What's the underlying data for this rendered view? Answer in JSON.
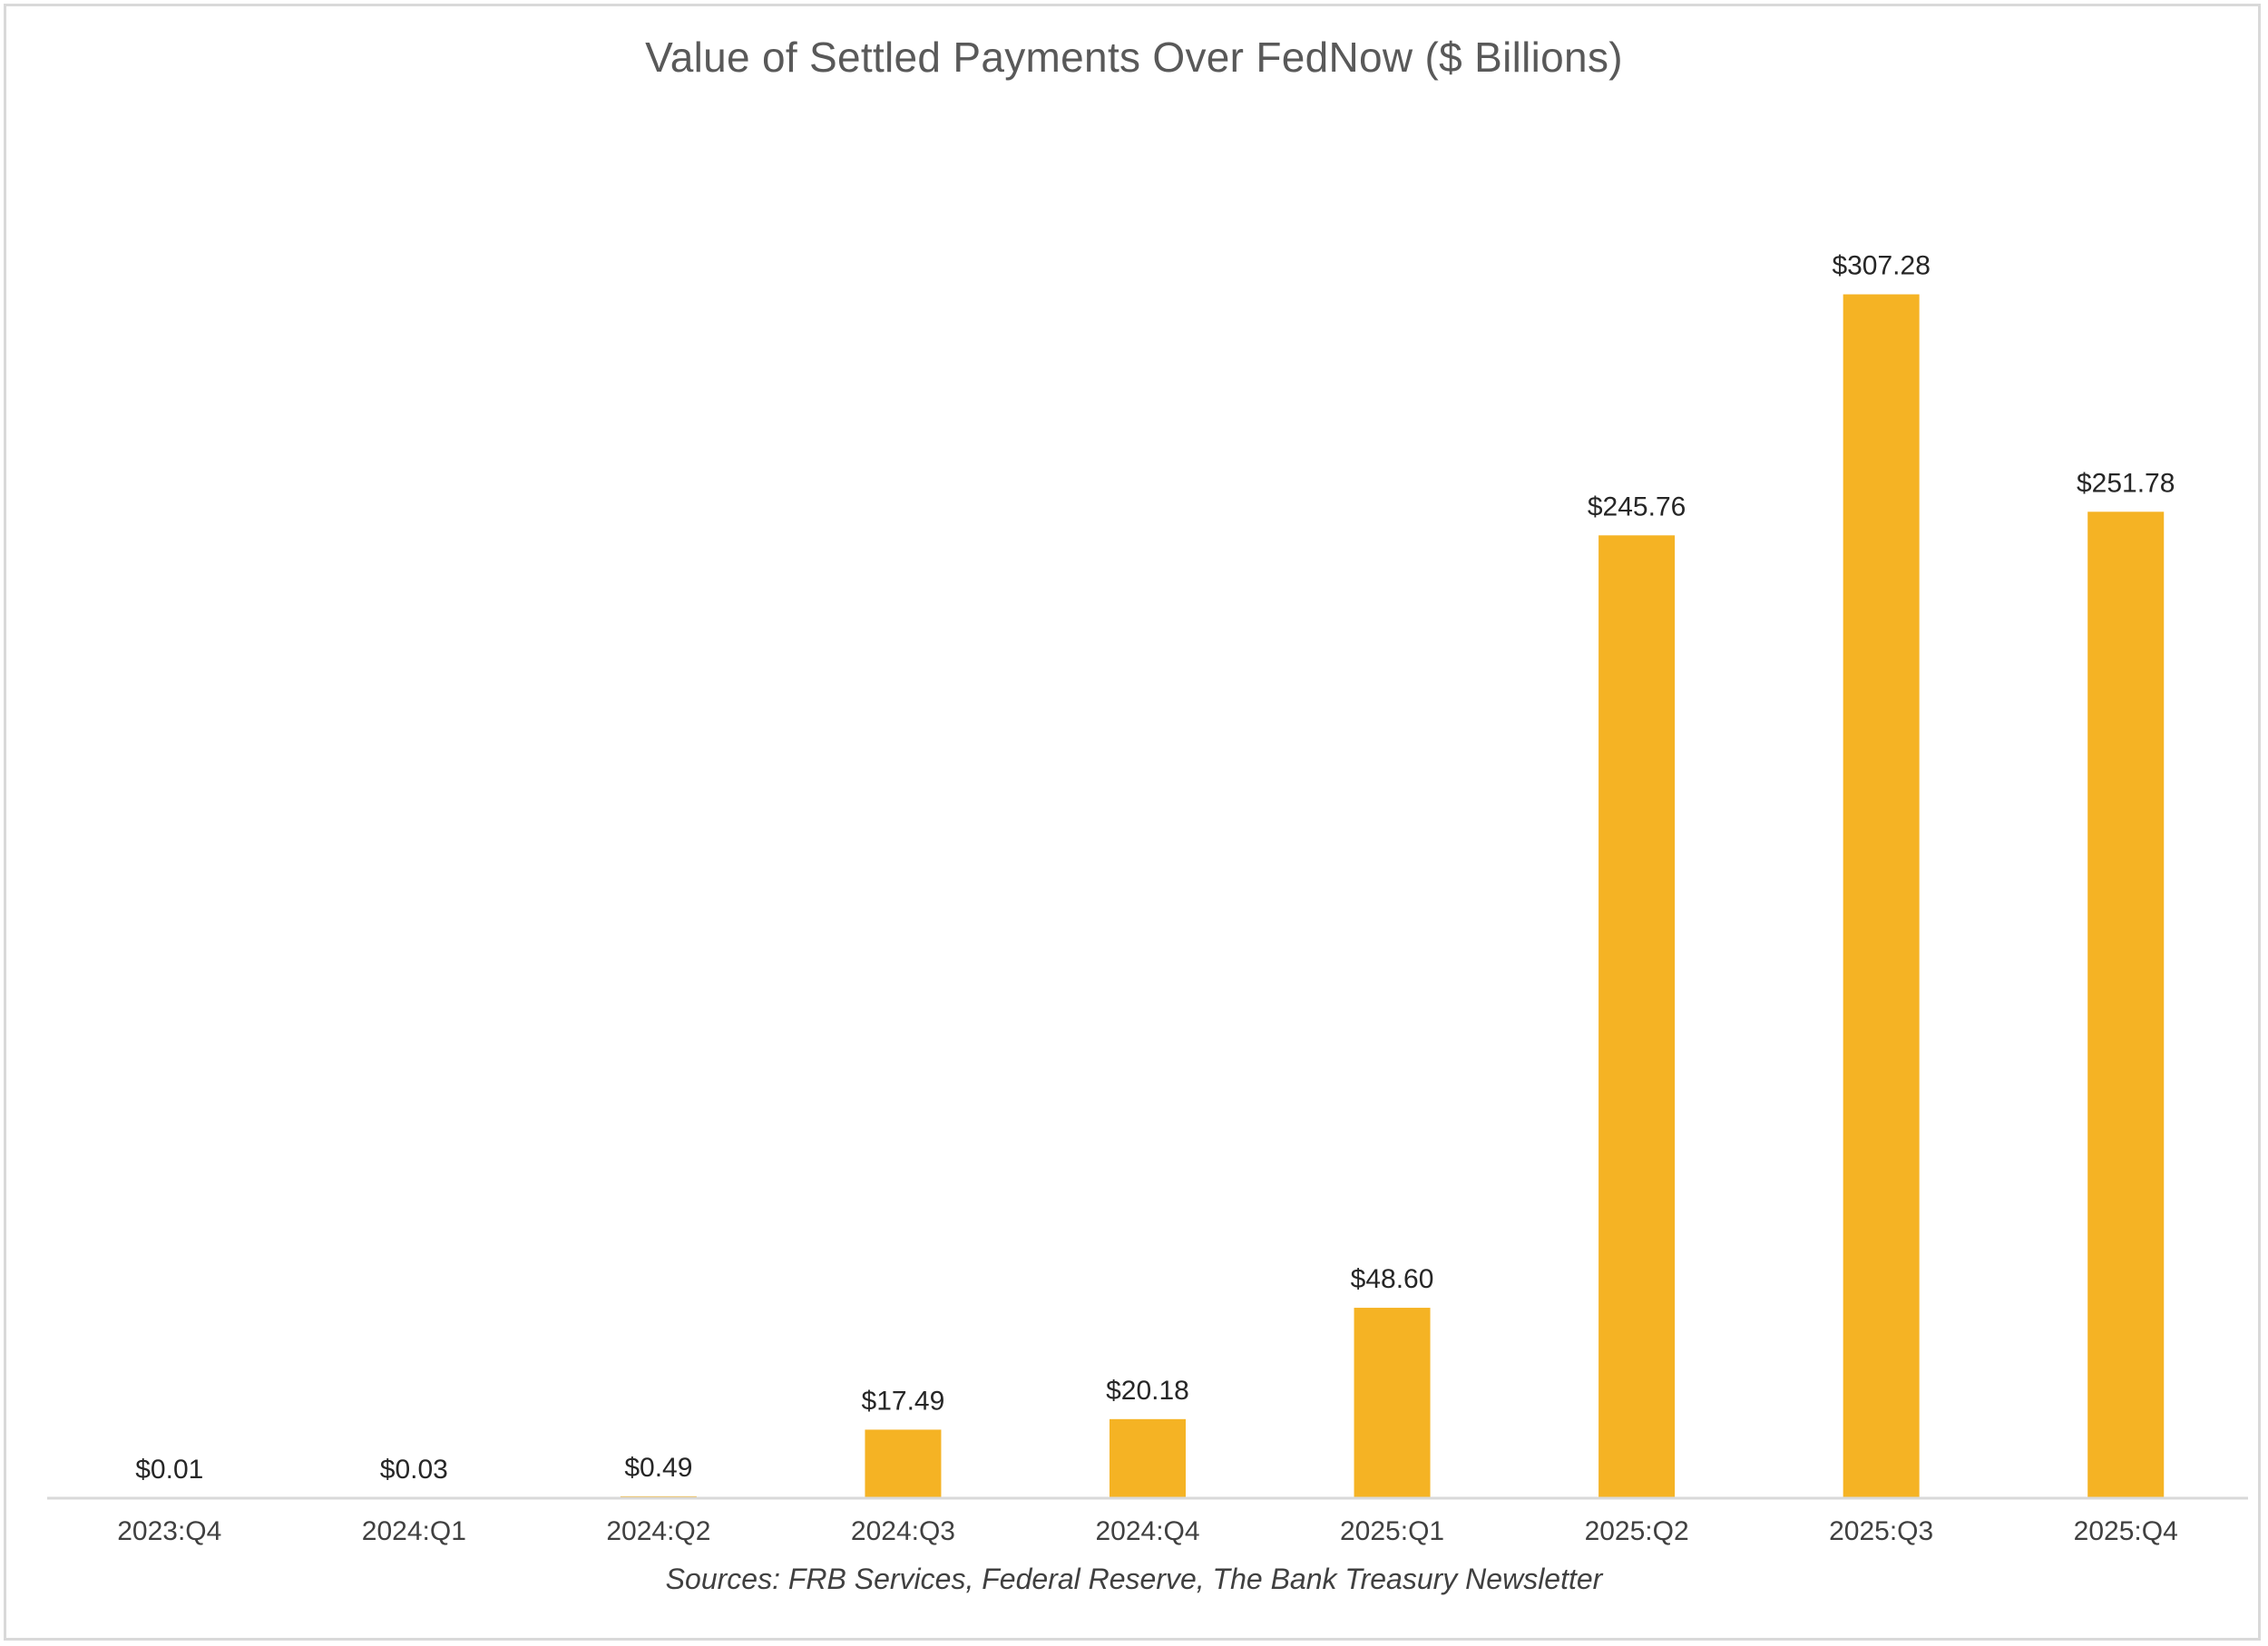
{
  "chart_data": {
    "type": "bar",
    "title": "Value of Settled Payments Over FedNow ($ Billions)",
    "xlabel": "",
    "ylabel": "",
    "categories": [
      "2023:Q4",
      "2024:Q1",
      "2024:Q2",
      "2024:Q3",
      "2024:Q4",
      "2025:Q1",
      "2025:Q2",
      "2025:Q3",
      "2025:Q4"
    ],
    "values": [
      0.01,
      0.03,
      0.49,
      17.49,
      20.18,
      48.6,
      245.76,
      307.28,
      251.78
    ],
    "data_labels": [
      "$0.01",
      "$0.03",
      "$0.49",
      "$17.49",
      "$20.18",
      "$48.60",
      "$245.76",
      "$307.28",
      "$251.78"
    ],
    "ylim": [
      0,
      350
    ],
    "grid": false,
    "legend": "none",
    "bar_color": "#F5B324",
    "axis_color": "#d9d9d9",
    "source": "Sources: FRB Services, Federal Reserve, The Bank Treasury Newsletter"
  }
}
